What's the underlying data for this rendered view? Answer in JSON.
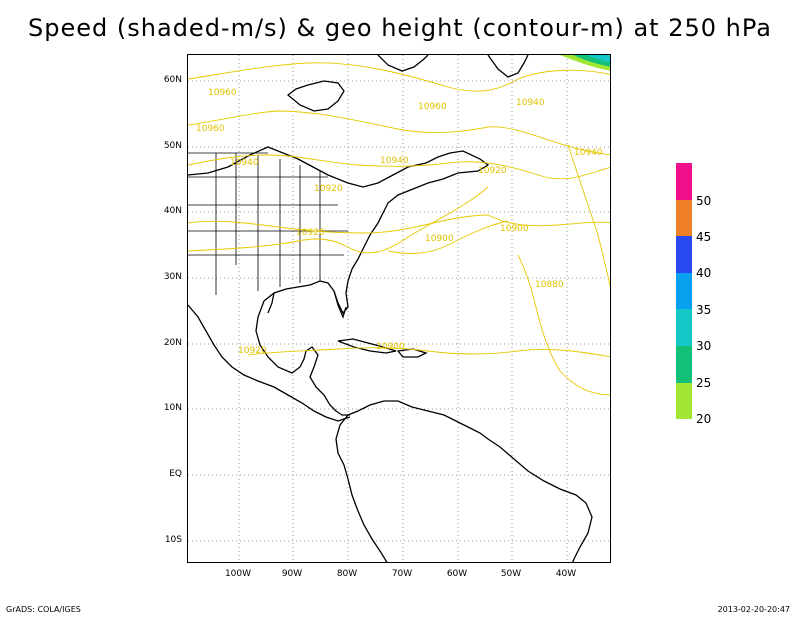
{
  "title": "Speed (shaded-m/s) & geo height (contour-m) at 250 hPa",
  "lat_labels": [
    "60N",
    "50N",
    "40N",
    "30N",
    "20N",
    "10N",
    "EQ",
    "10S"
  ],
  "lon_labels": [
    "100W",
    "90W",
    "80W",
    "70W",
    "60W",
    "50W",
    "40W"
  ],
  "contour_labels": [
    "10960",
    "10960",
    "10960",
    "10940",
    "10940",
    "10940",
    "10920",
    "10940",
    "10920",
    "10920",
    "10900",
    "10900",
    "10880",
    "10920",
    "10900"
  ],
  "colorbar": {
    "labels": [
      "50",
      "45",
      "40",
      "35",
      "30",
      "25",
      "20"
    ],
    "colors": [
      "#f0108c",
      "#f08028",
      "#2848f0",
      "#0aa0f0",
      "#14c8c8",
      "#14c078",
      "#a0e632"
    ]
  },
  "footer_left": "GrADS: COLA/IGES",
  "footer_right": "2013-02-20-20:47",
  "contour_color": "#e6c800"
}
